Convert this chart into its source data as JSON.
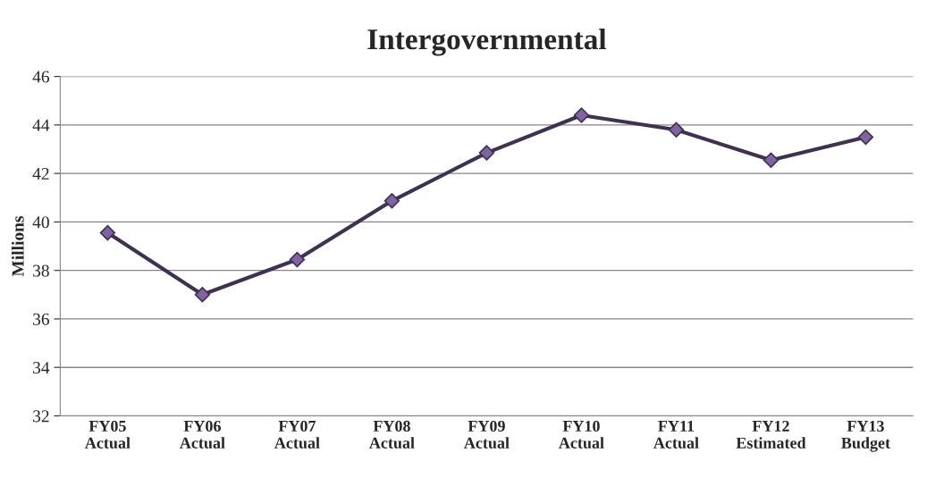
{
  "chart_data": {
    "type": "line",
    "title": "Intergovernmental",
    "ylabel": "Millions",
    "categories": [
      "FY05\nActual",
      "FY06\nActual",
      "FY07\nActual",
      "FY08\nActual",
      "FY09\nActual",
      "FY10\nActual",
      "FY11\nActual",
      "FY12\nEstimated",
      "FY13\nBudget"
    ],
    "series": [
      {
        "color": "#3f3151",
        "values": [
          39.55,
          37.0,
          38.45,
          40.87,
          42.85,
          44.4,
          43.8,
          42.55,
          43.5
        ]
      }
    ],
    "ylim": [
      32,
      46
    ],
    "yticks": [
      32,
      34,
      36,
      38,
      40,
      42,
      44,
      46
    ],
    "grid": "y",
    "marker": "diamond",
    "line_style": "solid",
    "legend": false
  }
}
